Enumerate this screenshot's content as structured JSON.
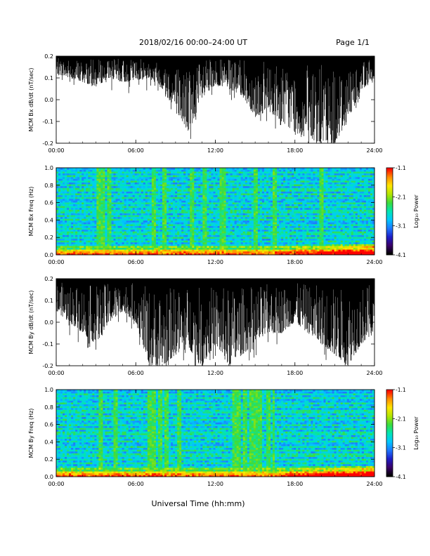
{
  "header": {
    "title": "2018/02/16  00:00–24:00 UT",
    "page": "Page 1/1"
  },
  "footer": {
    "xlabel": "Universal Time (hh:mm)"
  },
  "colors": {
    "trace": "#000000",
    "colormap": [
      "#000000",
      "#3a0068",
      "#1e1ec8",
      "#1e78ff",
      "#00c8ff",
      "#00e6b4",
      "#3cdc3c",
      "#b4e600",
      "#ffe600",
      "#ff8c00",
      "#ff0000"
    ]
  },
  "chart_data": [
    {
      "type": "line",
      "ylabel": "MCM Bx dB/dt (nT/sec)",
      "xlim": [
        0,
        24
      ],
      "ylim": [
        -0.2,
        0.2
      ],
      "x_ticks": [
        "00:00",
        "06:00",
        "12:00",
        "18:00",
        "24:00"
      ],
      "y_ticks": [
        "-0.2",
        "-0.1",
        "0.0",
        "0.1",
        "0.2"
      ],
      "series": [
        {
          "x": [
            0,
            1,
            2,
            3,
            4,
            5,
            6,
            7,
            8,
            9,
            10,
            11,
            12,
            13,
            14,
            15,
            16,
            17,
            18,
            19,
            20,
            21,
            22,
            23,
            24
          ],
          "upper": [
            0.2,
            0.2,
            0.2,
            0.2,
            0.2,
            0.2,
            0.2,
            0.2,
            0.2,
            0.2,
            0.2,
            0.2,
            0.2,
            0.2,
            0.2,
            0.2,
            0.2,
            0.2,
            0.2,
            0.2,
            0.2,
            0.2,
            0.2,
            0.2,
            0.2
          ],
          "lower": [
            0.12,
            0.1,
            0.08,
            0.06,
            0.1,
            0.08,
            0.09,
            0.1,
            0.05,
            -0.05,
            -0.15,
            0.0,
            0.07,
            0.05,
            0.02,
            -0.08,
            -0.05,
            -0.1,
            -0.15,
            -0.18,
            -0.2,
            -0.2,
            -0.1,
            0.05,
            0.08
          ]
        }
      ]
    },
    {
      "type": "heatmap",
      "ylabel": "MCM Bx Freq (Hz)",
      "colorbar_label": "Log₁₀ Power",
      "xlim": [
        0,
        24
      ],
      "ylim": [
        0,
        1
      ],
      "zlim": [
        -4.1,
        -1.1
      ],
      "x_ticks": [
        "00:00",
        "06:00",
        "12:00",
        "18:00",
        "24:00"
      ],
      "y_ticks": [
        "0.0",
        "0.2",
        "0.4",
        "0.6",
        "0.8",
        "1.0"
      ],
      "colorbar_ticks": [
        "-1.1",
        "-2.1",
        "-3.1",
        "-4.1"
      ],
      "vertical_bands_hours": [
        3.2,
        3.5,
        4.0,
        7.3,
        8.1,
        10.2,
        11.2,
        12.4,
        12.7,
        15.0,
        16.5,
        20.0
      ],
      "horizontal_lines_hz": [
        0.05,
        0.1,
        0.15,
        0.2,
        0.25,
        0.3,
        0.35,
        0.4,
        0.45,
        0.5,
        0.55,
        0.6,
        0.65,
        0.7,
        0.75,
        0.8,
        0.85,
        0.9,
        0.95
      ]
    },
    {
      "type": "line",
      "ylabel": "MCM By dB/dt (nT/sec)",
      "xlim": [
        0,
        24
      ],
      "ylim": [
        -0.2,
        0.2
      ],
      "x_ticks": [
        "00:00",
        "06:00",
        "12:00",
        "18:00",
        "24:00"
      ],
      "y_ticks": [
        "-0.2",
        "-0.1",
        "0.0",
        "0.1",
        "0.2"
      ],
      "series": [
        {
          "x": [
            0,
            1,
            2,
            3,
            4,
            5,
            6,
            7,
            8,
            9,
            10,
            11,
            12,
            13,
            14,
            15,
            16,
            17,
            18,
            19,
            20,
            21,
            22,
            23,
            24
          ],
          "upper": [
            0.2,
            0.2,
            0.2,
            0.2,
            0.2,
            0.2,
            0.2,
            0.2,
            0.2,
            0.2,
            0.2,
            0.2,
            0.2,
            0.2,
            0.2,
            0.2,
            0.2,
            0.2,
            0.2,
            0.2,
            0.2,
            0.2,
            0.2,
            0.2,
            0.2
          ],
          "lower": [
            0.05,
            0.0,
            -0.05,
            -0.1,
            0.0,
            0.05,
            0.0,
            -0.2,
            -0.2,
            -0.15,
            -0.12,
            -0.2,
            -0.1,
            -0.2,
            -0.15,
            -0.1,
            -0.05,
            -0.05,
            0.0,
            -0.05,
            -0.1,
            -0.15,
            -0.2,
            -0.1,
            -0.05
          ]
        }
      ]
    },
    {
      "type": "heatmap",
      "ylabel": "MCM By Freq (Hz)",
      "colorbar_label": "Log₁₀ Power",
      "xlim": [
        0,
        24
      ],
      "ylim": [
        0,
        1
      ],
      "zlim": [
        -4.1,
        -1.1
      ],
      "x_ticks": [
        "00:00",
        "06:00",
        "12:00",
        "18:00",
        "24:00"
      ],
      "y_ticks": [
        "0.0",
        "0.2",
        "0.4",
        "0.6",
        "0.8",
        "1.0"
      ],
      "colorbar_ticks": [
        "-1.1",
        "-2.1",
        "-3.1",
        "-4.1"
      ],
      "vertical_bands_hours": [
        3.3,
        4.5,
        7.1,
        7.4,
        7.9,
        8.3,
        9.3,
        13.4,
        13.8,
        14.2,
        14.7,
        15.0,
        15.4,
        16.0,
        16.4
      ],
      "horizontal_lines_hz": [
        0.05,
        0.1,
        0.15,
        0.2,
        0.25,
        0.3,
        0.35,
        0.4,
        0.45,
        0.5,
        0.55,
        0.6,
        0.65,
        0.7,
        0.75,
        0.8,
        0.85,
        0.9,
        0.95
      ]
    }
  ]
}
